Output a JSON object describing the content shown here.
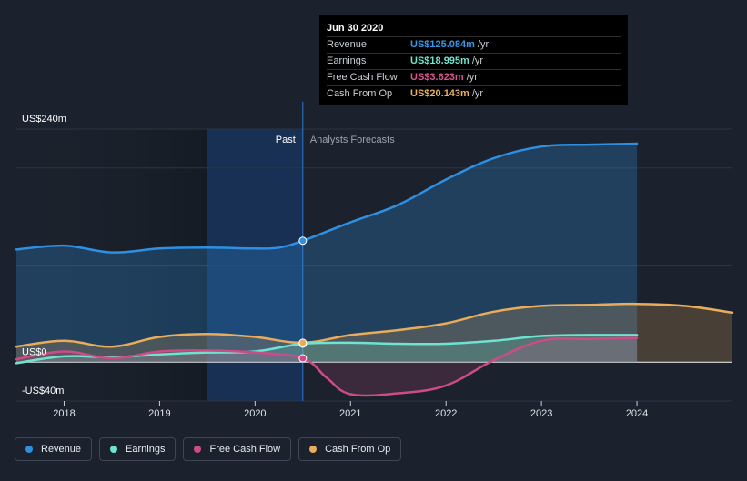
{
  "colors": {
    "revenue": "#2f8fe0",
    "earnings": "#6fe3cf",
    "free_cash_flow": "#cd4b86",
    "cash_from_op": "#e8ac5a",
    "past_highlight": "#17325a"
  },
  "tooltip": {
    "date": "Jun 30 2020",
    "rows": [
      {
        "label": "Revenue",
        "value": "US$125.084m",
        "unit": "/yr",
        "color": "#3b97e6"
      },
      {
        "label": "Earnings",
        "value": "US$18.995m",
        "unit": "/yr",
        "color": "#70e3cd"
      },
      {
        "label": "Free Cash Flow",
        "value": "US$3.623m",
        "unit": "/yr",
        "color": "#d9558f"
      },
      {
        "label": "Cash From Op",
        "value": "US$20.143m",
        "unit": "/yr",
        "color": "#eaae5c"
      }
    ]
  },
  "legend": [
    {
      "label": "Revenue",
      "color": "#2f8fe0"
    },
    {
      "label": "Earnings",
      "color": "#6fe3cf"
    },
    {
      "label": "Free Cash Flow",
      "color": "#cd4b86"
    },
    {
      "label": "Cash From Op",
      "color": "#e8ac5a"
    }
  ],
  "chart_data": {
    "type": "area",
    "title": "",
    "xlabel": "",
    "ylabel": "",
    "ylim": [
      -40,
      240
    ],
    "xlim": [
      2017.5,
      2025.0
    ],
    "y_tick_labels": [
      {
        "value": 240,
        "label": "US$240m"
      },
      {
        "value": 0,
        "label": "US$0"
      },
      {
        "value": -40,
        "label": "-US$40m"
      }
    ],
    "x_ticks": [
      2018,
      2019,
      2020,
      2021,
      2022,
      2023,
      2024
    ],
    "x_tick_labels": [
      "2018",
      "2019",
      "2020",
      "2021",
      "2022",
      "2023",
      "2024"
    ],
    "grid_values": [
      200,
      100
    ],
    "past_label": "Past",
    "forecast_label": "Analysts Forecasts",
    "divider_x": 2020.5,
    "highlight_start_x": 2019.5,
    "tooltip_x": 2020.5,
    "series": [
      {
        "name": "Revenue",
        "key": "revenue",
        "x": [
          2017.5,
          2018.0,
          2018.5,
          2019.0,
          2019.5,
          2020.0,
          2020.25,
          2020.5,
          2021.0,
          2021.5,
          2022.0,
          2022.5,
          2023.0,
          2023.5,
          2024.0
        ],
        "values": [
          116,
          120,
          113,
          117,
          118,
          117,
          118,
          125,
          144,
          162,
          188,
          210,
          222,
          224,
          225
        ],
        "marker_value": 125
      },
      {
        "name": "Earnings",
        "key": "earnings",
        "x": [
          2017.5,
          2018.0,
          2018.5,
          2019.0,
          2019.5,
          2020.0,
          2020.5,
          2021.0,
          2021.5,
          2022.0,
          2022.5,
          2023.0,
          2023.5,
          2024.0
        ],
        "values": [
          -1,
          6,
          5,
          8,
          10,
          11,
          19,
          20,
          19,
          19,
          22,
          27,
          28,
          28
        ],
        "marker_value": 19
      },
      {
        "name": "Free Cash Flow",
        "key": "free_cash_flow",
        "x": [
          2017.5,
          2018.0,
          2018.5,
          2019.0,
          2019.5,
          2020.0,
          2020.5,
          2020.75,
          2021.0,
          2021.5,
          2022.0,
          2022.5,
          2023.0,
          2023.5,
          2024.0
        ],
        "values": [
          3,
          11,
          4,
          11,
          12,
          10,
          4,
          -16,
          -33,
          -32,
          -24,
          2,
          22,
          24,
          25
        ],
        "marker_value": 4
      },
      {
        "name": "Cash From Op",
        "key": "cash_from_op",
        "x": [
          2017.5,
          2018.0,
          2018.5,
          2019.0,
          2019.5,
          2020.0,
          2020.5,
          2021.0,
          2021.5,
          2022.0,
          2022.5,
          2023.0,
          2023.5,
          2024.0,
          2024.5,
          2025.0
        ],
        "values": [
          16,
          22,
          16,
          26,
          29,
          26,
          20,
          28,
          33,
          40,
          52,
          58,
          59,
          60,
          58,
          51
        ],
        "marker_value": 20
      }
    ]
  }
}
